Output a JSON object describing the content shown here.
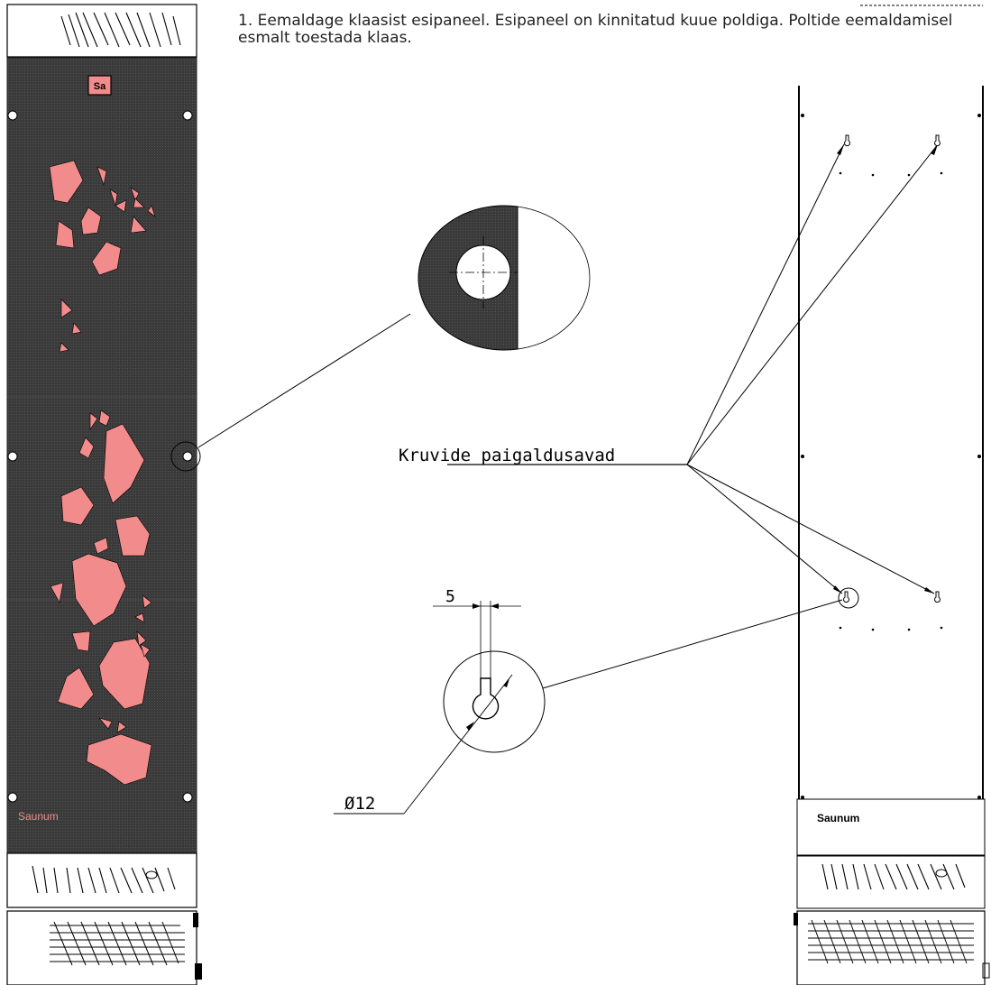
{
  "instruction": "1. Eemaldage klaasist esipaneel. Esipaneel on kinnitatud kuue poldiga. Poltide eemaldamisel esmalt toestada klaas.",
  "callout_label": "Kruvide paigaldusavad",
  "dimension_width": "5",
  "dimension_diameter": "Ø12",
  "logo_small": "Sa",
  "brand_front": "Saunum",
  "brand_back": "Saunum",
  "colors": {
    "panel": "#3b3b3b",
    "stone": "#f28b8b",
    "line": "#000000",
    "grille_bg": "#ffffff"
  }
}
